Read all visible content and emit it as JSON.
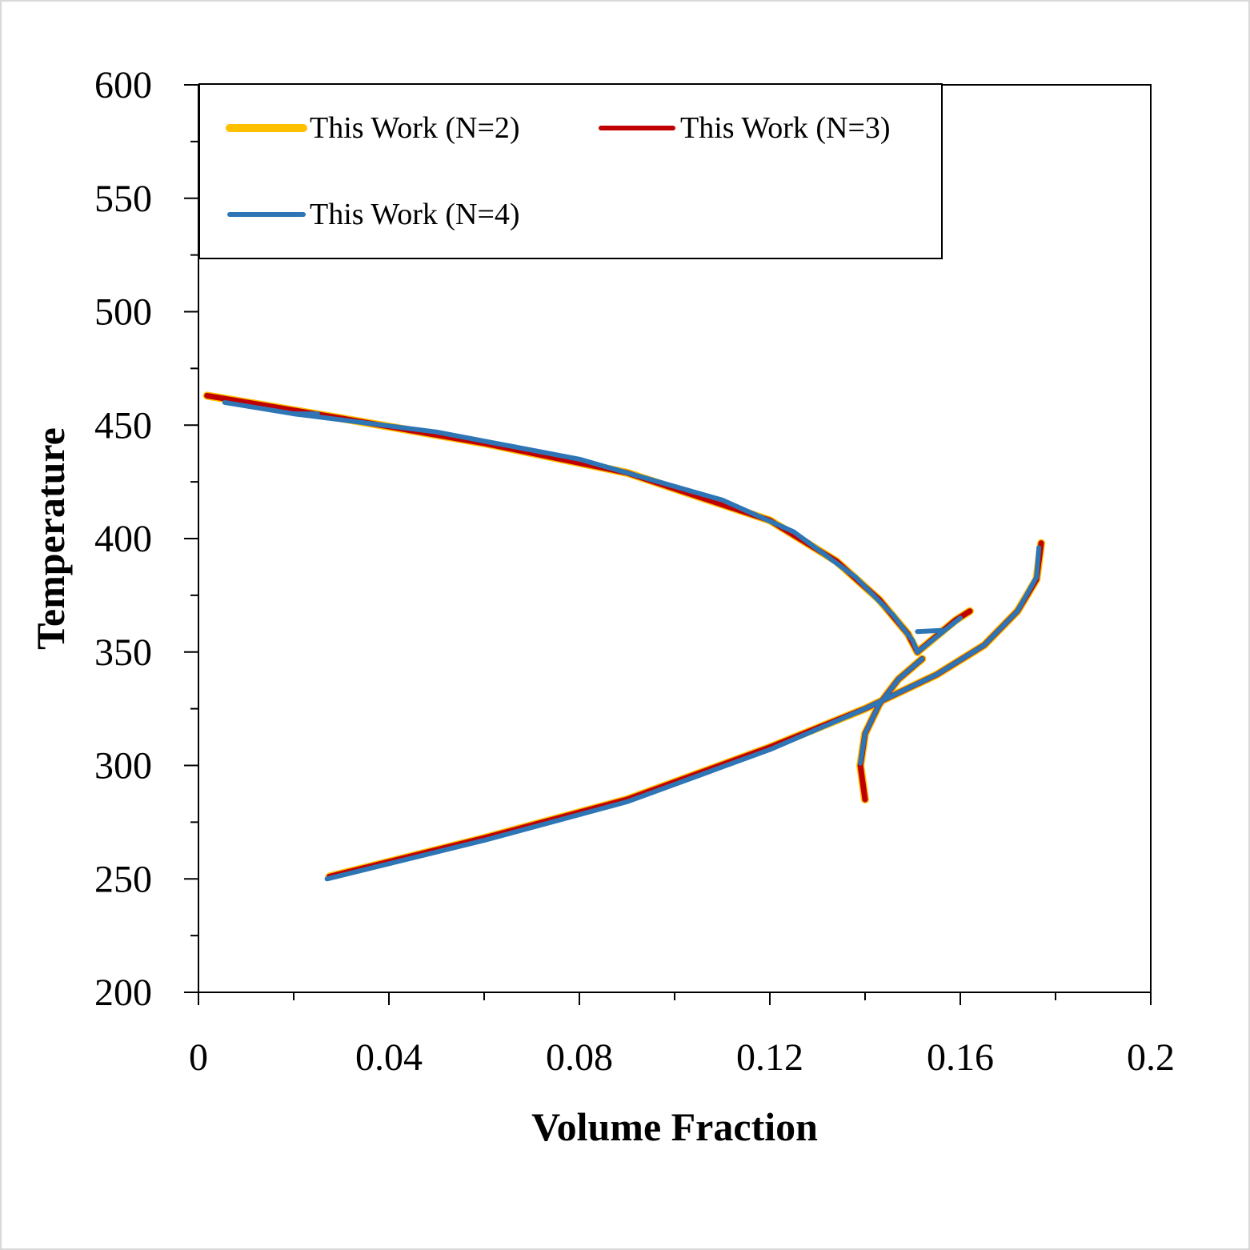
{
  "chart_data": {
    "type": "line",
    "title": "",
    "xlabel": "Volume Fraction",
    "ylabel": "Temperature",
    "xlim": [
      0,
      0.2
    ],
    "ylim": [
      200,
      600
    ],
    "xticks": [
      0,
      0.04,
      0.08,
      0.12,
      0.16,
      0.2
    ],
    "xtick_labels": [
      "0",
      "0.04",
      "0.08",
      "0.12",
      "0.16",
      "0.2"
    ],
    "yticks": [
      200,
      250,
      300,
      350,
      400,
      450,
      500,
      550,
      600
    ],
    "ytick_labels": [
      "200",
      "250",
      "300",
      "350",
      "400",
      "450",
      "500",
      "550",
      "600"
    ],
    "grid": false,
    "legend_position": "top-left",
    "series": [
      {
        "name": "This Work (N=2)",
        "color": "#FFC000",
        "segments": [
          [
            [
              0.0018,
              463
            ],
            [
              0.03,
              453
            ],
            [
              0.06,
              442
            ],
            [
              0.09,
              429
            ],
            [
              0.12,
              408
            ],
            [
              0.134,
              390
            ],
            [
              0.143,
              373
            ],
            [
              0.149,
              358
            ],
            [
              0.151,
              350
            ]
          ],
          [
            [
              0.151,
              350
            ],
            [
              0.155,
              357
            ],
            [
              0.159,
              364
            ],
            [
              0.162,
              368
            ]
          ],
          [
            [
              0.0275,
              251
            ],
            [
              0.06,
              268
            ],
            [
              0.09,
              285
            ],
            [
              0.12,
              308
            ],
            [
              0.14,
              325
            ],
            [
              0.155,
              340
            ],
            [
              0.165,
              353
            ],
            [
              0.172,
              368
            ],
            [
              0.176,
              382
            ],
            [
              0.177,
              398
            ]
          ],
          [
            [
              0.14,
              285
            ],
            [
              0.139,
              300
            ],
            [
              0.14,
              314
            ],
            [
              0.143,
              327
            ],
            [
              0.147,
              338
            ],
            [
              0.152,
              347
            ]
          ]
        ]
      },
      {
        "name": "This Work (N=3)",
        "color": "#C00000",
        "segments": [
          [
            [
              0.0018,
              463
            ],
            [
              0.03,
              453
            ],
            [
              0.06,
              442
            ],
            [
              0.09,
              429
            ],
            [
              0.12,
              408
            ],
            [
              0.134,
              390
            ],
            [
              0.143,
              373
            ],
            [
              0.149,
              358
            ],
            [
              0.151,
              350
            ]
          ],
          [
            [
              0.151,
              350
            ],
            [
              0.155,
              357
            ],
            [
              0.159,
              364
            ],
            [
              0.162,
              368
            ]
          ],
          [
            [
              0.0275,
              251
            ],
            [
              0.06,
              268
            ],
            [
              0.09,
              285
            ],
            [
              0.12,
              308
            ],
            [
              0.14,
              325
            ],
            [
              0.155,
              340
            ],
            [
              0.165,
              353
            ],
            [
              0.172,
              368
            ],
            [
              0.176,
              382
            ],
            [
              0.177,
              398
            ]
          ],
          [
            [
              0.14,
              285
            ],
            [
              0.139,
              300
            ],
            [
              0.14,
              314
            ],
            [
              0.143,
              327
            ],
            [
              0.147,
              338
            ],
            [
              0.152,
              347
            ]
          ]
        ]
      },
      {
        "name": "This Work (N=4)",
        "color": "#2E75B6",
        "segments": [
          [
            [
              0.0055,
              460
            ],
            [
              0.02,
              455
            ],
            [
              0.025,
              455
            ]
          ],
          [
            [
              0.02,
              455
            ],
            [
              0.05,
              447
            ],
            [
              0.08,
              435
            ],
            [
              0.11,
              417
            ],
            [
              0.125,
              403
            ],
            [
              0.138,
              383
            ],
            [
              0.146,
              366
            ],
            [
              0.15,
              355
            ],
            [
              0.151,
              350
            ]
          ],
          [
            [
              0.151,
              350
            ],
            [
              0.154,
              355
            ],
            [
              0.157,
              360
            ],
            [
              0.16,
              365
            ]
          ],
          [
            [
              0.151,
              359
            ],
            [
              0.156,
              359.5
            ]
          ],
          [
            [
              0.027,
              250
            ],
            [
              0.06,
              267
            ],
            [
              0.09,
              284
            ],
            [
              0.12,
              307
            ],
            [
              0.14,
              325
            ],
            [
              0.155,
              340
            ],
            [
              0.165,
              353
            ],
            [
              0.172,
              368
            ],
            [
              0.176,
              383
            ],
            [
              0.1765,
              396
            ]
          ],
          [
            [
              0.139,
              301
            ],
            [
              0.14,
              314
            ],
            [
              0.143,
              327
            ],
            [
              0.147,
              338
            ],
            [
              0.152,
              347
            ]
          ]
        ]
      }
    ]
  }
}
